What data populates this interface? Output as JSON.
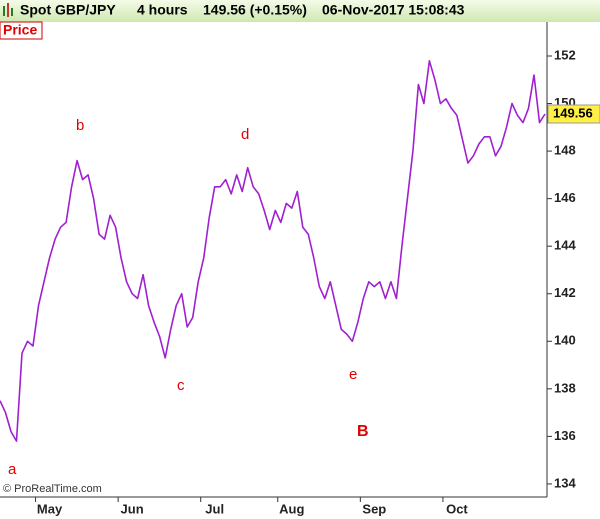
{
  "header": {
    "instrument": "Spot GBP/JPY",
    "interval": "4 hours",
    "price_change": "149.56 (+0.15%)",
    "timestamp": "06-Nov-2017 15:08:43"
  },
  "chart_data": {
    "type": "line",
    "panel_label": "Price",
    "watermark": "© ProRealTime.com",
    "categories": [
      null,
      null,
      null,
      null,
      null,
      null,
      null,
      null,
      null,
      "May",
      null,
      null,
      null,
      null,
      null,
      null,
      null,
      null,
      null,
      null,
      null,
      null,
      null,
      null,
      "Jun",
      null,
      null,
      null,
      null,
      null,
      null,
      null,
      null,
      null,
      null,
      null,
      null,
      null,
      null,
      "Jul",
      null,
      null,
      null,
      null,
      null,
      null,
      null,
      null,
      null,
      null,
      null,
      null,
      null,
      "Aug",
      null,
      null,
      null,
      null,
      null,
      null,
      null,
      null,
      null,
      null,
      null,
      null,
      null,
      null,
      "Sep",
      null,
      null,
      null,
      null,
      null,
      null,
      null,
      null,
      null,
      null,
      null,
      null,
      null,
      null,
      "Oct",
      null,
      null,
      null,
      null,
      null,
      null,
      null,
      null,
      null,
      null,
      null,
      null,
      null,
      null,
      null,
      null
    ],
    "series": [
      {
        "name": "Spot GBP/JPY",
        "color": "#a020d0",
        "values": [
          137.5,
          137,
          136.2,
          135.8,
          139.5,
          140,
          139.8,
          141.5,
          142.5,
          143.5,
          144.3,
          144.8,
          145,
          146.5,
          147.6,
          146.8,
          147,
          146,
          144.5,
          144.3,
          145.3,
          144.8,
          143.5,
          142.5,
          142,
          141.8,
          142.8,
          141.5,
          140.8,
          140.2,
          139.3,
          140.5,
          141.5,
          142,
          140.6,
          141,
          142.5,
          143.5,
          145.2,
          146.5,
          146.5,
          146.8,
          146.2,
          147,
          146.3,
          147.3,
          146.5,
          146.2,
          145.5,
          144.7,
          145.5,
          145,
          145.8,
          145.6,
          146.3,
          144.8,
          144.5,
          143.5,
          142.3,
          141.8,
          142.5,
          141.5,
          140.5,
          140.3,
          140,
          140.8,
          141.8,
          142.5,
          142.3,
          142.5,
          141.8,
          142.5,
          141.8,
          144,
          146,
          148,
          150.8,
          150,
          151.8,
          151,
          150,
          150.2,
          149.8,
          149.5,
          148.5,
          147.5,
          147.8,
          148.3,
          148.6,
          148.6,
          147.8,
          148.2,
          149,
          150,
          149.5,
          149.2,
          149.8,
          151.2,
          149.2,
          149.56
        ]
      }
    ],
    "last_value": 149.56,
    "ylim": [
      133.45,
      153.43
    ],
    "yticks": [
      134,
      136,
      138,
      140,
      142,
      144,
      146,
      148,
      150,
      152
    ],
    "annotations": [
      "a",
      "b",
      "c",
      "d",
      "e",
      "B"
    ],
    "grid": false
  }
}
